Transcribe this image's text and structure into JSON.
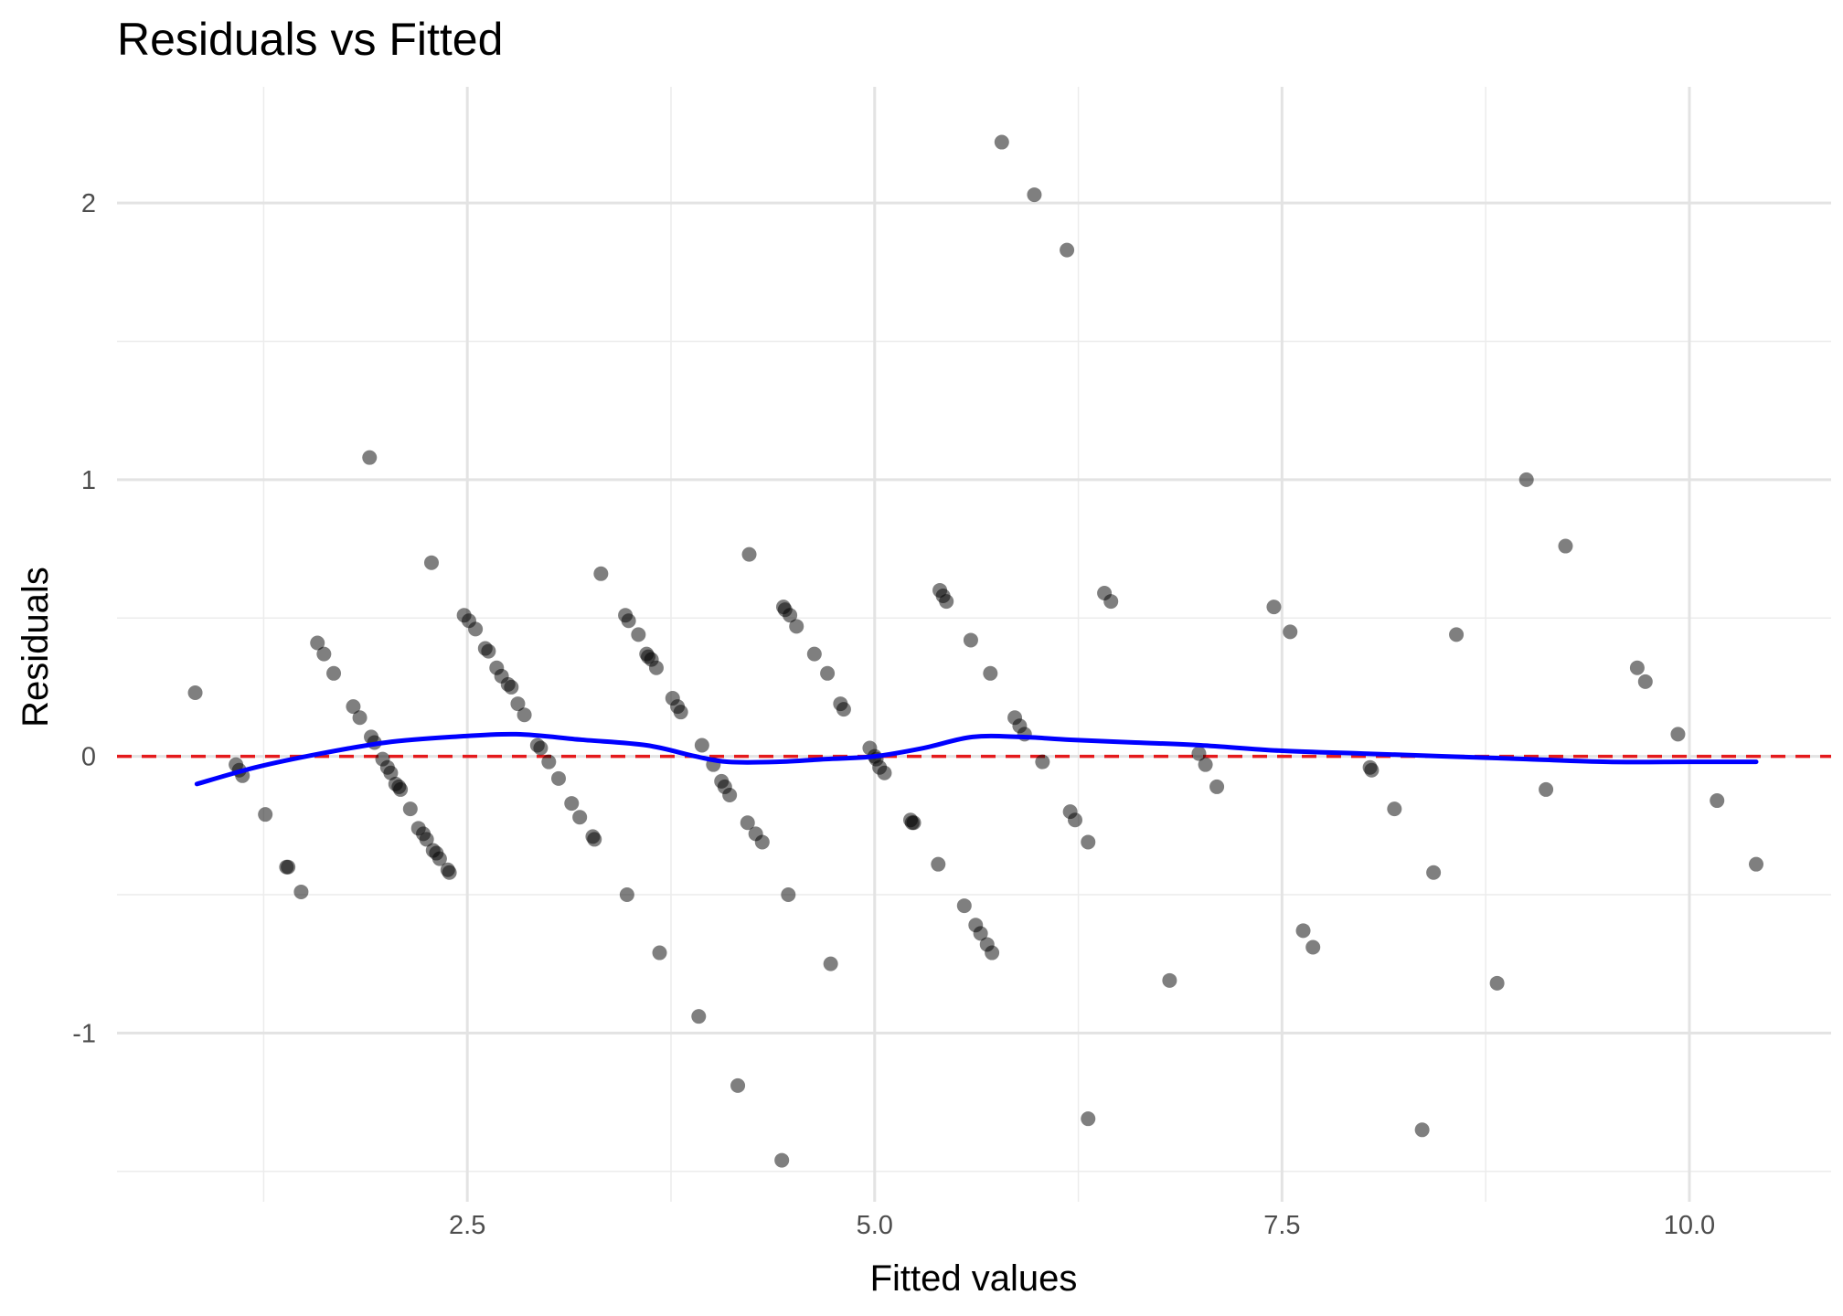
{
  "chart_data": {
    "type": "scatter",
    "title": "Residuals vs Fitted",
    "xlabel": "Fitted values",
    "ylabel": "Residuals",
    "xlim": [
      0.35,
      10.87
    ],
    "ylim": [
      -1.61,
      2.42
    ],
    "x_ticks": [
      2.5,
      5.0,
      7.5,
      10.0
    ],
    "x_tick_labels": [
      "2.5",
      "5.0",
      "7.5",
      "10.0"
    ],
    "x_minor_ticks": [
      1.25,
      3.75,
      6.25,
      8.75
    ],
    "y_ticks": [
      -1,
      0,
      1,
      2
    ],
    "y_tick_labels": [
      "-1",
      "0",
      "1",
      "2"
    ],
    "y_minor_ticks": [
      -1.5,
      -0.5,
      0.5,
      1.5
    ],
    "grid": true,
    "reference_line": {
      "y": 0,
      "style": "dashed",
      "color": "#e41a1c"
    },
    "point_color": "#000000",
    "point_opacity": 0.5,
    "smooth_color": "#0000ff",
    "points": [
      [
        0.83,
        0.23
      ],
      [
        1.08,
        -0.03
      ],
      [
        1.1,
        -0.05
      ],
      [
        1.12,
        -0.07
      ],
      [
        1.26,
        -0.21
      ],
      [
        1.39,
        -0.4
      ],
      [
        1.4,
        -0.4
      ],
      [
        1.48,
        -0.49
      ],
      [
        1.58,
        0.41
      ],
      [
        1.62,
        0.37
      ],
      [
        1.68,
        0.3
      ],
      [
        1.8,
        0.18
      ],
      [
        1.84,
        0.14
      ],
      [
        1.9,
        1.08
      ],
      [
        1.91,
        0.07
      ],
      [
        1.93,
        0.05
      ],
      [
        1.98,
        -0.01
      ],
      [
        2.01,
        -0.04
      ],
      [
        2.03,
        -0.06
      ],
      [
        2.06,
        -0.1
      ],
      [
        2.08,
        -0.11
      ],
      [
        2.09,
        -0.12
      ],
      [
        2.15,
        -0.19
      ],
      [
        2.2,
        -0.26
      ],
      [
        2.23,
        -0.28
      ],
      [
        2.25,
        -0.3
      ],
      [
        2.28,
        0.7
      ],
      [
        2.29,
        -0.34
      ],
      [
        2.31,
        -0.35
      ],
      [
        2.33,
        -0.37
      ],
      [
        2.38,
        -0.41
      ],
      [
        2.39,
        -0.42
      ],
      [
        2.48,
        0.51
      ],
      [
        2.51,
        0.49
      ],
      [
        2.55,
        0.46
      ],
      [
        2.61,
        0.39
      ],
      [
        2.63,
        0.38
      ],
      [
        2.68,
        0.32
      ],
      [
        2.71,
        0.29
      ],
      [
        2.75,
        0.26
      ],
      [
        2.77,
        0.25
      ],
      [
        2.81,
        0.19
      ],
      [
        2.85,
        0.15
      ],
      [
        2.93,
        0.04
      ],
      [
        2.95,
        0.03
      ],
      [
        3.0,
        -0.02
      ],
      [
        3.06,
        -0.08
      ],
      [
        3.14,
        -0.17
      ],
      [
        3.19,
        -0.22
      ],
      [
        3.27,
        -0.29
      ],
      [
        3.28,
        -0.3
      ],
      [
        3.32,
        0.66
      ],
      [
        3.47,
        0.51
      ],
      [
        3.49,
        0.49
      ],
      [
        3.48,
        -0.5
      ],
      [
        3.55,
        0.44
      ],
      [
        3.6,
        0.37
      ],
      [
        3.61,
        0.36
      ],
      [
        3.63,
        0.35
      ],
      [
        3.66,
        0.32
      ],
      [
        3.68,
        -0.71
      ],
      [
        3.76,
        0.21
      ],
      [
        3.79,
        0.18
      ],
      [
        3.81,
        0.16
      ],
      [
        3.92,
        -0.94
      ],
      [
        3.94,
        0.04
      ],
      [
        4.01,
        -0.03
      ],
      [
        4.06,
        -0.09
      ],
      [
        4.08,
        -0.11
      ],
      [
        4.11,
        -0.14
      ],
      [
        4.16,
        -1.19
      ],
      [
        4.22,
        -0.24
      ],
      [
        4.23,
        0.73
      ],
      [
        4.27,
        -0.28
      ],
      [
        4.31,
        -0.31
      ],
      [
        4.43,
        -1.46
      ],
      [
        4.44,
        0.54
      ],
      [
        4.45,
        0.53
      ],
      [
        4.48,
        0.51
      ],
      [
        4.47,
        -0.5
      ],
      [
        4.52,
        0.47
      ],
      [
        4.63,
        0.37
      ],
      [
        4.71,
        0.3
      ],
      [
        4.73,
        -0.75
      ],
      [
        4.79,
        0.19
      ],
      [
        4.81,
        0.17
      ],
      [
        4.97,
        0.03
      ],
      [
        5.0,
        0.0
      ],
      [
        5.01,
        -0.01
      ],
      [
        5.03,
        -0.04
      ],
      [
        5.06,
        -0.06
      ],
      [
        5.22,
        -0.23
      ],
      [
        5.23,
        -0.24
      ],
      [
        5.24,
        -0.24
      ],
      [
        5.39,
        -0.39
      ],
      [
        5.4,
        0.6
      ],
      [
        5.42,
        0.58
      ],
      [
        5.44,
        0.56
      ],
      [
        5.55,
        -0.54
      ],
      [
        5.59,
        0.42
      ],
      [
        5.62,
        -0.61
      ],
      [
        5.65,
        -0.64
      ],
      [
        5.69,
        -0.68
      ],
      [
        5.71,
        0.3
      ],
      [
        5.72,
        -0.71
      ],
      [
        5.78,
        2.22
      ],
      [
        5.86,
        0.14
      ],
      [
        5.89,
        0.11
      ],
      [
        5.92,
        0.08
      ],
      [
        5.98,
        2.03
      ],
      [
        6.03,
        -0.02
      ],
      [
        6.18,
        1.83
      ],
      [
        6.2,
        -0.2
      ],
      [
        6.23,
        -0.23
      ],
      [
        6.31,
        -0.31
      ],
      [
        6.31,
        -1.31
      ],
      [
        6.41,
        0.59
      ],
      [
        6.45,
        0.56
      ],
      [
        6.81,
        -0.81
      ],
      [
        6.99,
        0.01
      ],
      [
        7.03,
        -0.03
      ],
      [
        7.1,
        -0.11
      ],
      [
        7.45,
        0.54
      ],
      [
        7.55,
        0.45
      ],
      [
        7.63,
        -0.63
      ],
      [
        7.69,
        -0.69
      ],
      [
        8.04,
        -0.04
      ],
      [
        8.05,
        -0.05
      ],
      [
        8.19,
        -0.19
      ],
      [
        8.36,
        -1.35
      ],
      [
        8.43,
        -0.42
      ],
      [
        8.57,
        0.44
      ],
      [
        8.82,
        -0.82
      ],
      [
        9.0,
        1.0
      ],
      [
        9.12,
        -0.12
      ],
      [
        9.24,
        0.76
      ],
      [
        9.68,
        0.32
      ],
      [
        9.73,
        0.27
      ],
      [
        9.93,
        0.08
      ],
      [
        10.17,
        -0.16
      ],
      [
        10.41,
        -0.39
      ]
    ],
    "smooth_line": [
      [
        0.84,
        -0.1
      ],
      [
        1.2,
        -0.04
      ],
      [
        1.6,
        0.01
      ],
      [
        2.0,
        0.05
      ],
      [
        2.4,
        0.07
      ],
      [
        2.8,
        0.08
      ],
      [
        3.2,
        0.06
      ],
      [
        3.6,
        0.04
      ],
      [
        3.9,
        0.0
      ],
      [
        4.1,
        -0.02
      ],
      [
        4.4,
        -0.02
      ],
      [
        4.7,
        -0.01
      ],
      [
        5.0,
        0.0
      ],
      [
        5.3,
        0.03
      ],
      [
        5.6,
        0.07
      ],
      [
        5.9,
        0.07
      ],
      [
        6.2,
        0.06
      ],
      [
        6.6,
        0.05
      ],
      [
        7.0,
        0.04
      ],
      [
        7.5,
        0.02
      ],
      [
        8.0,
        0.01
      ],
      [
        8.5,
        0.0
      ],
      [
        9.0,
        -0.01
      ],
      [
        9.5,
        -0.02
      ],
      [
        10.0,
        -0.02
      ],
      [
        10.41,
        -0.02
      ]
    ]
  }
}
